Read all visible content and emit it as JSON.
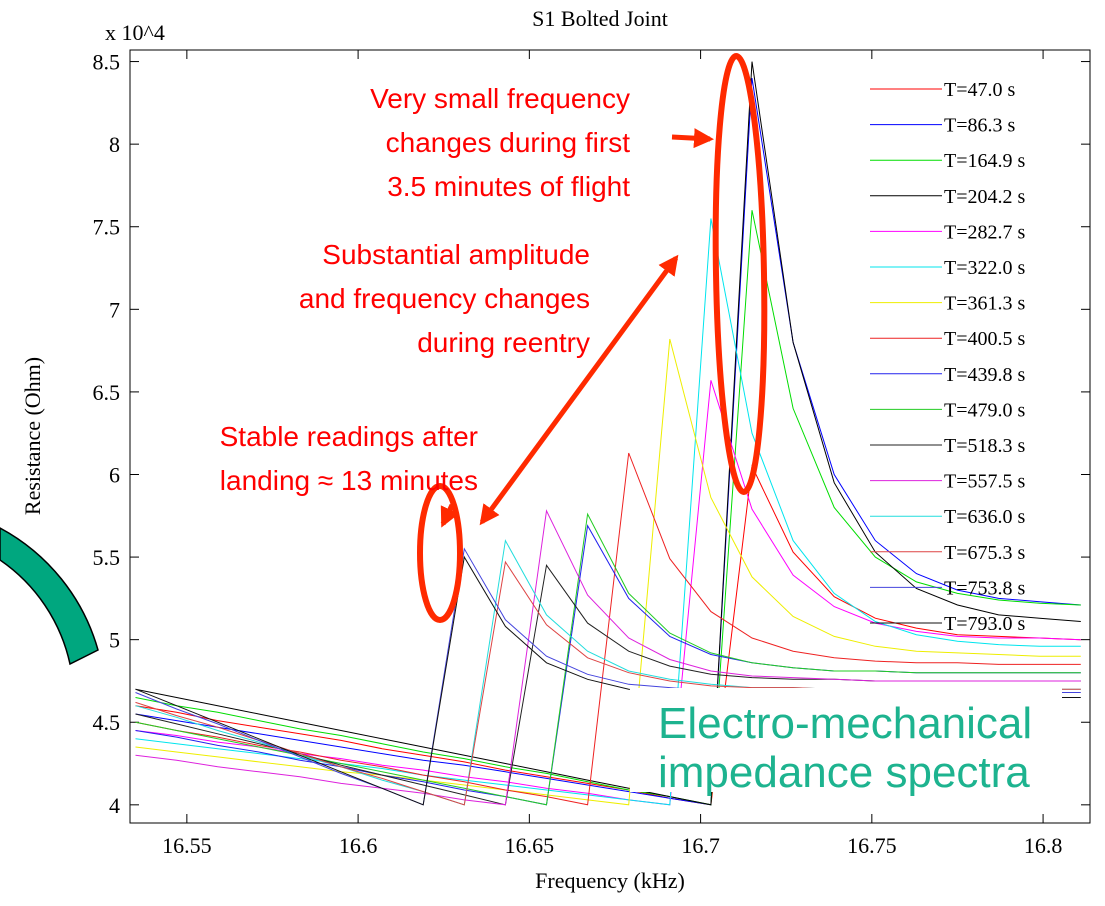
{
  "chart_data": {
    "type": "line",
    "title": "S1 Bolted Joint",
    "multiplier": "x 10^4",
    "xlabel": "Frequency (kHz)",
    "ylabel": "Resistance (Ohm)",
    "xlim": [
      16.5334,
      16.8137
    ],
    "ylim": [
      3.89,
      8.57
    ],
    "xticks": [
      16.55,
      16.6,
      16.65,
      16.7,
      16.75,
      16.8
    ],
    "yticks": [
      4,
      4.5,
      5,
      5.5,
      6,
      6.5,
      7,
      7.5,
      8,
      8.5
    ],
    "x": [
      16.535,
      16.547,
      16.559,
      16.571,
      16.583,
      16.595,
      16.607,
      16.619,
      16.631,
      16.643,
      16.655,
      16.667,
      16.679,
      16.691,
      16.703,
      16.715,
      16.727,
      16.739,
      16.751,
      16.763,
      16.775,
      16.787,
      16.799,
      16.811
    ],
    "series": [
      {
        "name": "T=47.0 s",
        "color": "#ff0000",
        "values": [
          4.6,
          4.56,
          4.51,
          4.47,
          4.43,
          4.39,
          4.34,
          4.3,
          4.26,
          4.21,
          4.17,
          4.13,
          4.09,
          4.04,
          4.0,
          6.05,
          5.53,
          5.26,
          5.13,
          5.07,
          5.03,
          5.02,
          5.01,
          5.0
        ]
      },
      {
        "name": "T=86.3 s",
        "color": "#0000ff",
        "values": [
          4.55,
          4.51,
          4.47,
          4.43,
          4.39,
          4.35,
          4.31,
          4.27,
          4.24,
          4.2,
          4.16,
          4.12,
          4.08,
          4.04,
          4.0,
          8.4,
          6.8,
          6.0,
          5.6,
          5.4,
          5.3,
          5.25,
          5.23,
          5.21
        ]
      },
      {
        "name": "T=164.9 s",
        "color": "#00dd00",
        "values": [
          4.65,
          4.6,
          4.56,
          4.51,
          4.46,
          4.42,
          4.37,
          4.32,
          4.28,
          4.23,
          4.19,
          4.14,
          4.09,
          4.05,
          4.0,
          7.6,
          6.4,
          5.8,
          5.5,
          5.35,
          5.28,
          5.24,
          5.22,
          5.21
        ]
      },
      {
        "name": "T=204.2 s",
        "color": "#000000",
        "values": [
          4.7,
          4.65,
          4.6,
          4.55,
          4.5,
          4.45,
          4.4,
          4.35,
          4.3,
          4.25,
          4.2,
          4.15,
          4.1,
          4.05,
          4.0,
          8.5,
          6.8,
          5.95,
          5.53,
          5.31,
          5.21,
          5.15,
          5.13,
          5.11
        ]
      },
      {
        "name": "T=282.7 s",
        "color": "#ff00ff",
        "values": [
          4.45,
          4.42,
          4.38,
          4.35,
          4.31,
          4.28,
          4.24,
          4.21,
          4.17,
          4.14,
          4.1,
          4.07,
          4.03,
          4.0,
          6.57,
          5.79,
          5.39,
          5.2,
          5.1,
          5.05,
          5.02,
          5.01,
          5.01,
          5.0
        ]
      },
      {
        "name": "T=322.0 s",
        "color": "#00e5ee",
        "values": [
          4.4,
          4.37,
          4.34,
          4.31,
          4.28,
          4.25,
          4.22,
          4.18,
          4.15,
          4.12,
          4.09,
          4.06,
          4.03,
          4.0,
          7.55,
          6.25,
          5.6,
          5.28,
          5.11,
          5.03,
          4.99,
          4.97,
          4.96,
          4.96
        ]
      },
      {
        "name": "T=361.3 s",
        "color": "#eeee00",
        "values": [
          4.35,
          4.32,
          4.29,
          4.26,
          4.23,
          4.2,
          4.18,
          4.15,
          4.12,
          4.09,
          4.06,
          4.03,
          4.0,
          6.82,
          5.86,
          5.38,
          5.14,
          5.02,
          4.96,
          4.93,
          4.92,
          4.91,
          4.9,
          4.9
        ]
      },
      {
        "name": "T=400.5 s",
        "color": "#ee2222",
        "values": [
          4.5,
          4.45,
          4.41,
          4.36,
          4.32,
          4.27,
          4.23,
          4.18,
          4.14,
          4.09,
          4.05,
          4.0,
          6.13,
          5.49,
          5.17,
          5.01,
          4.93,
          4.89,
          4.87,
          4.86,
          4.86,
          4.85,
          4.85,
          4.85
        ]
      },
      {
        "name": "T=439.8 s",
        "color": "#2222ee",
        "values": [
          4.45,
          4.41,
          4.36,
          4.32,
          4.27,
          4.23,
          4.18,
          4.14,
          4.09,
          4.05,
          4.0,
          5.69,
          5.25,
          5.02,
          4.91,
          4.86,
          4.83,
          4.81,
          4.81,
          4.8,
          4.8,
          4.8,
          4.8,
          4.8
        ]
      },
      {
        "name": "T=479.0 s",
        "color": "#22cc22",
        "values": [
          4.5,
          4.45,
          4.4,
          4.35,
          4.3,
          4.25,
          4.2,
          4.15,
          4.1,
          4.05,
          4.0,
          5.76,
          5.28,
          5.04,
          4.92,
          4.86,
          4.83,
          4.81,
          4.81,
          4.8,
          4.8,
          4.8,
          4.8,
          4.8
        ]
      },
      {
        "name": "T=518.3 s",
        "color": "#222222",
        "values": [
          4.55,
          4.49,
          4.43,
          4.37,
          4.31,
          4.24,
          4.18,
          4.12,
          4.06,
          4.0,
          5.45,
          5.1,
          4.93,
          4.84,
          4.79,
          4.77,
          4.76,
          4.76,
          4.75,
          4.75,
          4.75,
          4.75,
          4.75,
          4.75
        ]
      },
      {
        "name": "T=557.5 s",
        "color": "#dd22dd",
        "values": [
          4.3,
          4.27,
          4.23,
          4.2,
          4.17,
          4.13,
          4.1,
          4.07,
          4.03,
          4.0,
          5.78,
          5.27,
          5.01,
          4.88,
          4.81,
          4.78,
          4.77,
          4.76,
          4.75,
          4.75,
          4.75,
          4.75,
          4.75,
          4.75
        ]
      },
      {
        "name": "T=636.0 s",
        "color": "#22dddd",
        "values": [
          4.6,
          4.53,
          4.45,
          4.38,
          4.3,
          4.23,
          4.15,
          4.08,
          4.0,
          5.6,
          5.15,
          4.93,
          4.81,
          4.76,
          4.73,
          4.71,
          4.71,
          4.7,
          4.7,
          4.7,
          4.7,
          4.7,
          4.7,
          4.7
        ]
      },
      {
        "name": "T=675.3 s",
        "color": "#dd4444",
        "values": [
          4.62,
          4.54,
          4.47,
          4.39,
          4.31,
          4.23,
          4.16,
          4.08,
          4.0,
          5.47,
          5.09,
          4.89,
          4.8,
          4.75,
          4.72,
          4.71,
          4.71,
          4.7,
          4.7,
          4.7,
          4.7,
          4.7,
          4.7,
          4.7
        ]
      },
      {
        "name": "T=753.8 s",
        "color": "#4444dd",
        "values": [
          4.68,
          4.58,
          4.49,
          4.39,
          4.29,
          4.19,
          4.1,
          4.0,
          5.55,
          5.12,
          4.9,
          4.79,
          4.73,
          4.71,
          4.69,
          4.69,
          4.68,
          4.68,
          4.68,
          4.68,
          4.68,
          4.68,
          4.68,
          4.68
        ]
      },
      {
        "name": "T=793.0 s",
        "color": "#111111",
        "values": [
          4.7,
          4.6,
          4.5,
          4.4,
          4.3,
          4.2,
          4.1,
          4.0,
          5.5,
          5.08,
          4.86,
          4.76,
          4.7,
          4.68,
          4.66,
          4.66,
          4.65,
          4.65,
          4.65,
          4.65,
          4.65,
          4.65,
          4.65,
          4.65
        ]
      }
    ],
    "annotations": [
      {
        "lines": [
          "Very small frequency",
          "changes during first",
          "3.5 minutes of flight"
        ]
      },
      {
        "lines": [
          "Substantial amplitude",
          "and frequency changes",
          "during reentry"
        ]
      },
      {
        "lines": [
          "Stable readings after",
          "landing  ≈ 13 minutes"
        ]
      },
      {
        "lines": [
          "Electro-mechanical",
          "impedance spectra"
        ]
      }
    ]
  }
}
